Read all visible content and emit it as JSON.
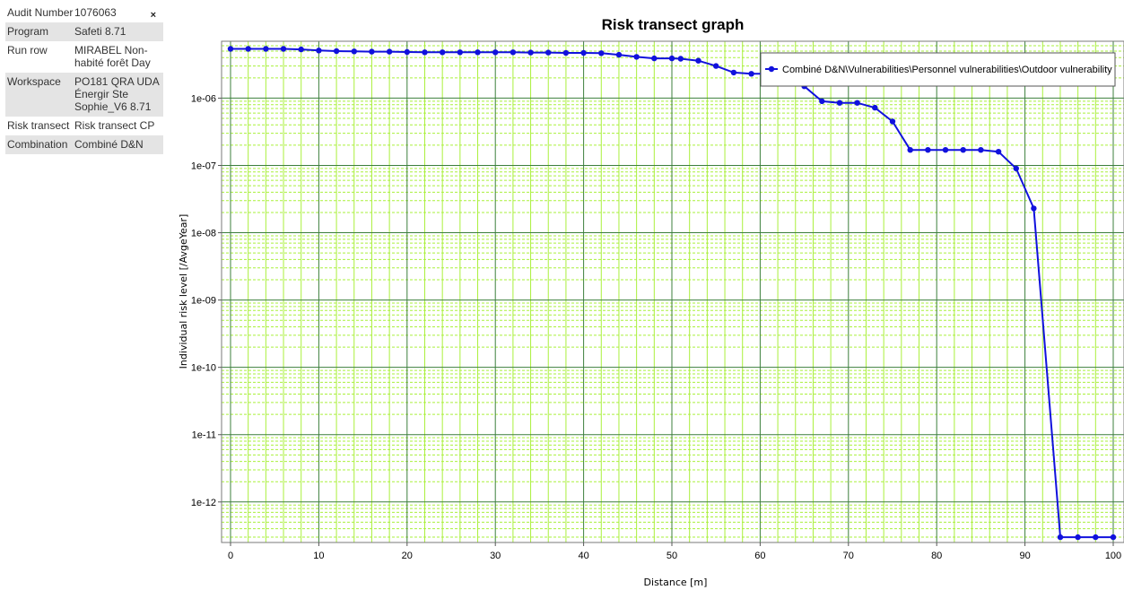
{
  "info": {
    "rows": [
      {
        "label": "Audit Number",
        "value": "1076063"
      },
      {
        "label": "Program",
        "value": "Safeti 8.71"
      },
      {
        "label": "Run row",
        "value": "MIRABEL Non-habité forêt Day"
      },
      {
        "label": "Workspace",
        "value": "PO181 QRA UDA Énergir Ste Sophie_V6 8.71"
      },
      {
        "label": "Risk transect",
        "value": "Risk transect CP"
      },
      {
        "label": "Combination",
        "value": "Combiné D&N"
      }
    ],
    "close_glyph": "×"
  },
  "colors": {
    "series": "#1111dd",
    "major_grid": "#3c7f3c",
    "minor_grid": "#aaf03c"
  },
  "chart_data": {
    "type": "line",
    "title": "Risk transect graph",
    "xlabel": "Distance [m]",
    "ylabel": "Individual risk level [/AvgeYear]",
    "xlim": [
      0,
      100
    ],
    "ylim": [
      2.5e-13,
      7e-06
    ],
    "yscale": "log",
    "grid": true,
    "legend_position": "top-right",
    "x_ticks": [
      "0",
      "10",
      "20",
      "30",
      "40",
      "50",
      "60",
      "70",
      "80",
      "90",
      "100"
    ],
    "y_ticks": [
      "1e-06",
      "1e-07",
      "1e-08",
      "1e-09",
      "1e-10",
      "1e-11",
      "1e-12"
    ],
    "series": [
      {
        "name": "Combiné D&N\\Vulnerabilities\\Personnel vulnerabilities\\Outdoor vulnerability",
        "x": [
          0,
          2,
          4,
          6,
          8,
          10,
          12,
          14,
          16,
          18,
          20,
          22,
          24,
          26,
          28,
          30,
          32,
          34,
          36,
          38,
          40,
          42,
          44,
          46,
          48,
          50,
          51,
          53,
          55,
          57,
          59,
          61,
          63,
          65,
          67,
          69,
          71,
          73,
          75,
          77,
          79,
          81,
          83,
          85,
          87,
          89,
          91,
          94,
          96,
          98,
          100
        ],
        "values": [
          5.4e-06,
          5.4e-06,
          5.4e-06,
          5.4e-06,
          5.3e-06,
          5.1e-06,
          5e-06,
          4.95e-06,
          4.9e-06,
          4.9e-06,
          4.85e-06,
          4.8e-06,
          4.8e-06,
          4.8e-06,
          4.8e-06,
          4.8e-06,
          4.8e-06,
          4.75e-06,
          4.75e-06,
          4.7e-06,
          4.7e-06,
          4.65e-06,
          4.4e-06,
          4.1e-06,
          3.9e-06,
          3.9e-06,
          3.85e-06,
          3.6e-06,
          3e-06,
          2.4e-06,
          2.3e-06,
          2.3e-06,
          2e-06,
          1.5e-06,
          9e-07,
          8.5e-07,
          8.5e-07,
          7.2e-07,
          4.5e-07,
          1.7e-07,
          1.7e-07,
          1.7e-07,
          1.7e-07,
          1.7e-07,
          1.6e-07,
          9e-08,
          2.3e-08,
          3e-13,
          3e-13,
          3e-13,
          3e-13
        ]
      }
    ]
  }
}
